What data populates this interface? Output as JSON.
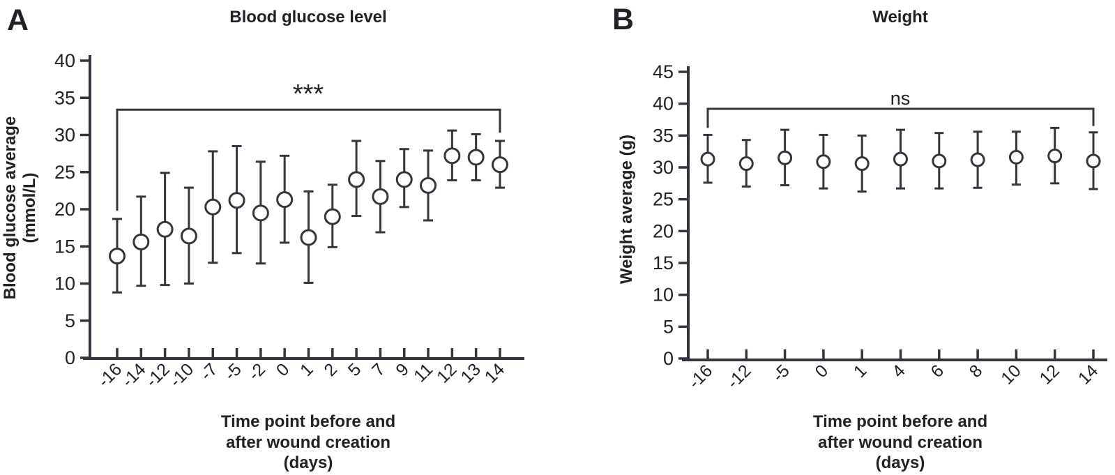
{
  "figure": {
    "background": "#ffffff",
    "line_color": "#33363c",
    "text_color": "#202226",
    "marker_style": "open-circle",
    "marker_fill": "#ffffff"
  },
  "chart_data": [
    {
      "type": "scatter",
      "panel_label": "A",
      "title": "Blood glucose level",
      "ylabel_lines": [
        "Blood glucose average",
        "(mmol/L)"
      ],
      "xlabel_lines": [
        "Time point before and",
        "after wound creation",
        "(days)"
      ],
      "ylim": [
        0,
        40
      ],
      "yticks": [
        0,
        5,
        10,
        15,
        20,
        25,
        30,
        35,
        40
      ],
      "grid": false,
      "legend": null,
      "categories": [
        "-16",
        "-14",
        "-12",
        "-10",
        "-7",
        "-5",
        "-2",
        "0",
        "1",
        "2",
        "5",
        "7",
        "9",
        "11",
        "12",
        "13",
        "14"
      ],
      "series": [
        {
          "name": "Blood glucose average",
          "means": [
            13.7,
            15.6,
            17.3,
            16.4,
            20.3,
            21.2,
            19.5,
            21.3,
            16.2,
            19.0,
            24.0,
            21.7,
            24.0,
            23.2,
            27.2,
            27.0,
            26.0
          ],
          "error_low": [
            8.8,
            9.7,
            9.8,
            10.0,
            12.8,
            14.1,
            12.7,
            15.5,
            10.1,
            14.9,
            19.1,
            16.9,
            20.3,
            18.5,
            23.9,
            23.9,
            22.9
          ],
          "error_high": [
            18.7,
            21.7,
            24.9,
            22.9,
            27.8,
            28.5,
            26.4,
            27.2,
            22.4,
            23.3,
            29.2,
            26.5,
            28.1,
            27.9,
            30.6,
            30.1,
            29.2
          ]
        }
      ],
      "significance": {
        "label": "***",
        "span": [
          "-16",
          "14"
        ],
        "bar_value": 33.4,
        "left_drop_value": 19.8,
        "right_drop_value": 30.3
      }
    },
    {
      "type": "scatter",
      "panel_label": "B",
      "title": "Weight",
      "ylabel_lines": [
        "Weight average (g)"
      ],
      "xlabel_lines": [
        "Time point before and",
        "after wound creation",
        "(days)"
      ],
      "ylim": [
        0,
        45
      ],
      "yticks": [
        0,
        5,
        10,
        15,
        20,
        25,
        30,
        35,
        40,
        45
      ],
      "grid": false,
      "legend": null,
      "categories": [
        "-16",
        "-12",
        "-5",
        "0",
        "1",
        "4",
        "6",
        "8",
        "10",
        "12",
        "14"
      ],
      "series": [
        {
          "name": "Weight average",
          "means": [
            31.3,
            30.6,
            31.5,
            30.9,
            30.6,
            31.3,
            31.0,
            31.2,
            31.6,
            31.8,
            31.0
          ],
          "error_low": [
            27.6,
            27.0,
            27.2,
            26.7,
            26.2,
            26.7,
            26.7,
            26.8,
            27.3,
            27.5,
            26.6
          ],
          "error_high": [
            35.1,
            34.3,
            35.9,
            35.1,
            35.0,
            35.9,
            35.4,
            35.6,
            35.6,
            36.2,
            35.5
          ]
        }
      ],
      "significance": {
        "label": "ns",
        "span": [
          "-16",
          "14"
        ],
        "bar_value": 39.2,
        "left_drop_value": 36.2,
        "right_drop_value": 36.5
      }
    }
  ]
}
